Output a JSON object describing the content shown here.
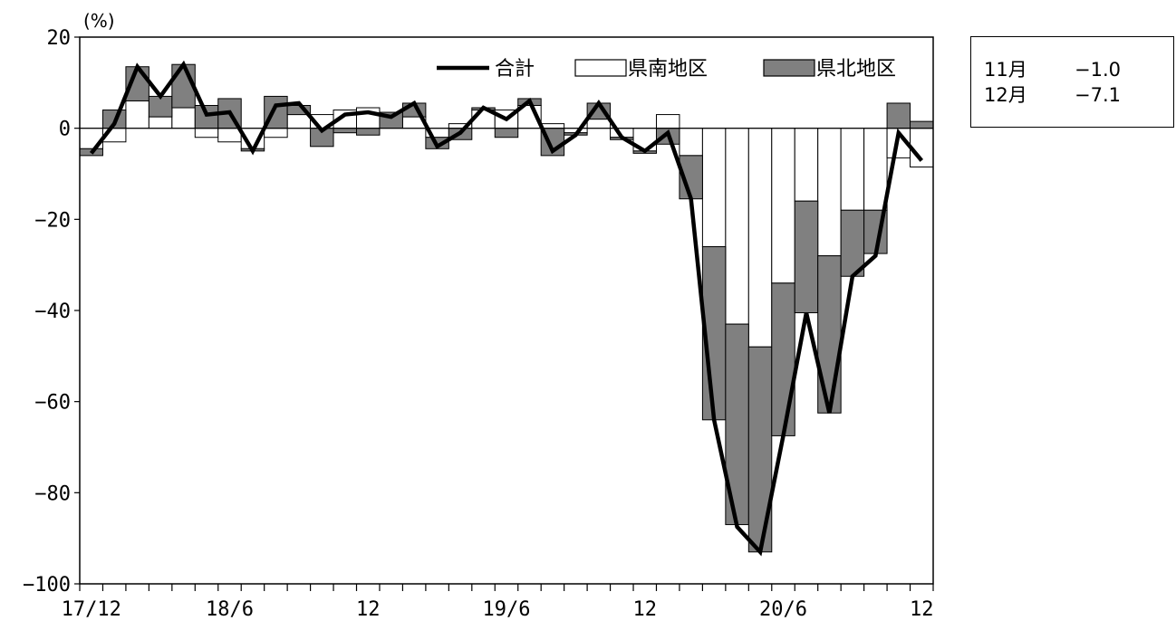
{
  "unit_label": "(%)",
  "legend": {
    "total": "合計",
    "south": "県南地区",
    "north": "県北地区"
  },
  "side_box": {
    "rows": [
      {
        "month": "11月",
        "value": "−1.0"
      },
      {
        "month": "12月",
        "value": "−7.1"
      }
    ]
  },
  "chart_data": {
    "type": "bar",
    "stacked": true,
    "categories": [
      "17/12",
      "",
      "",
      "",
      "",
      "",
      "18/6",
      "",
      "",
      "",
      "",
      "",
      "12",
      "",
      "",
      "",
      "",
      "",
      "19/6",
      "",
      "",
      "",
      "",
      "",
      "12",
      "",
      "",
      "",
      "",
      "",
      "20/6",
      "",
      "",
      "",
      "",
      "",
      "12"
    ],
    "x_tick_labels": [
      "17/12",
      "18/6",
      "12",
      "19/6",
      "12",
      "20/6",
      "12"
    ],
    "ylim": [
      -100,
      20
    ],
    "yticks": [
      20,
      0,
      -20,
      -40,
      -60,
      -80,
      -100
    ],
    "ytick_labels": [
      "20",
      "0",
      "−20",
      "−40",
      "−60",
      "−80",
      "−100"
    ],
    "grid": false,
    "legend_position": "top-right",
    "colors": {
      "total": "#000000",
      "south": "#ffffff",
      "north": "#808080",
      "bar_edge": "#000000"
    },
    "series": [
      {
        "name": "県南地区",
        "kind": "bar",
        "values": [
          -4.5,
          -3,
          6,
          2.5,
          4.5,
          -2,
          -3,
          -4.5,
          -2,
          3,
          3,
          4,
          4.5,
          0,
          2.5,
          -2,
          1,
          4,
          4,
          5,
          1,
          -1,
          2,
          -2,
          -5,
          3,
          -6,
          -26,
          -43,
          -48,
          -34,
          -16,
          -28,
          -18,
          -18,
          -6.5,
          -8.5
        ]
      },
      {
        "name": "県北地区",
        "kind": "bar",
        "values": [
          -1.5,
          4,
          7.5,
          4.5,
          9.5,
          5,
          6.5,
          -0.5,
          7,
          2,
          -4,
          -1,
          -1.5,
          3.5,
          3,
          -2.5,
          -2.5,
          0.5,
          -2,
          1.5,
          -6,
          -0.5,
          3.5,
          -0.5,
          -0.5,
          -3.5,
          -9.5,
          -38,
          -44,
          -45,
          -33.5,
          -24.5,
          -34.5,
          -14.5,
          -9.5,
          5.5,
          1.5
        ]
      },
      {
        "name": "合計",
        "kind": "line",
        "values": [
          -5.5,
          1,
          13.5,
          7,
          14,
          3,
          3.5,
          -5,
          5,
          5.5,
          -0.5,
          3,
          3.5,
          2.5,
          5.5,
          -4,
          -1,
          4.5,
          2,
          6,
          -5,
          -1.5,
          5.5,
          -2,
          -5,
          -1,
          -15.5,
          -64,
          -87.5,
          -93,
          -67.5,
          -40.5,
          -62.5,
          -32.5,
          -28,
          -1,
          -7.1
        ]
      }
    ]
  }
}
